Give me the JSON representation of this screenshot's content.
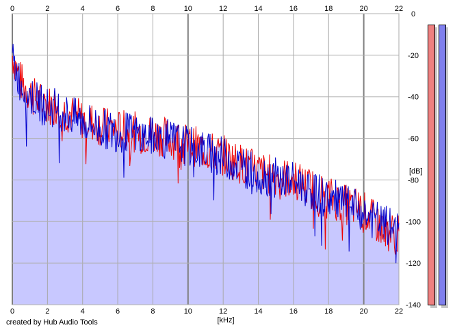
{
  "chart_data": {
    "type": "area",
    "xlabel": "[kHz]",
    "ylabel": "[dB]",
    "xlim": [
      0,
      22
    ],
    "ylim": [
      -140,
      0
    ],
    "x_ticks": [
      "0",
      "2",
      "4",
      "6",
      "8",
      "10",
      "12",
      "14",
      "16",
      "18",
      "20",
      "22"
    ],
    "y_ticks": [
      "0",
      "-20",
      "-40",
      "-60",
      "-80",
      "-100",
      "-120",
      "-140"
    ],
    "grid": true,
    "series": [
      {
        "color": "#ee0000",
        "x": [
          0,
          0.5,
          1,
          1.5,
          2,
          2.5,
          3,
          3.5,
          4,
          4.5,
          5,
          5.5,
          6,
          6.5,
          7,
          7.5,
          8,
          8.5,
          9,
          9.5,
          10,
          10.5,
          11,
          11.5,
          12,
          12.5,
          13,
          13.5,
          14,
          14.5,
          15,
          15.5,
          16,
          16.5,
          17,
          17.5,
          18,
          18.5,
          19,
          19.5,
          20,
          20.5,
          21,
          21.5,
          22
        ],
        "values": [
          -20,
          -33,
          -38,
          -42,
          -44,
          -44,
          -47,
          -49,
          -51,
          -52,
          -54,
          -55,
          -56,
          -56,
          -57,
          -58,
          -58,
          -59,
          -60,
          -61,
          -63,
          -64,
          -66,
          -67,
          -68,
          -70,
          -72,
          -74,
          -76,
          -77,
          -78,
          -79,
          -80,
          -82,
          -84,
          -86,
          -88,
          -90,
          -92,
          -93,
          -95,
          -99,
          -103,
          -105,
          -107
        ]
      },
      {
        "color": "#0000cc",
        "x": [
          0,
          0.5,
          1,
          1.5,
          2,
          2.5,
          3,
          3.5,
          4,
          4.5,
          5,
          5.5,
          6,
          6.5,
          7,
          7.5,
          8,
          8.5,
          9,
          9.5,
          10,
          10.5,
          11,
          11.5,
          12,
          12.5,
          13,
          13.5,
          14,
          14.5,
          15,
          15.5,
          16,
          16.5,
          17,
          17.5,
          18,
          18.5,
          19,
          19.5,
          20,
          20.5,
          21,
          21.5,
          22
        ],
        "values": [
          -22,
          -34,
          -39,
          -43,
          -45,
          -45,
          -48,
          -50,
          -52,
          -53,
          -55,
          -56,
          -57,
          -57,
          -58,
          -59,
          -59,
          -60,
          -61,
          -62,
          -64,
          -65,
          -66,
          -68,
          -69,
          -71,
          -73,
          -75,
          -77,
          -78,
          -79,
          -80,
          -81,
          -82,
          -85,
          -87,
          -89,
          -90,
          -92,
          -94,
          -96,
          -99,
          -101,
          -103,
          -105
        ]
      }
    ],
    "fill_color": "#c8c8ff"
  },
  "credit": "created by Hub Audio Tools",
  "meters": [
    {
      "name": "left-channel-meter",
      "color": "#ee8080"
    },
    {
      "name": "right-channel-meter",
      "color": "#8080ee"
    }
  ]
}
